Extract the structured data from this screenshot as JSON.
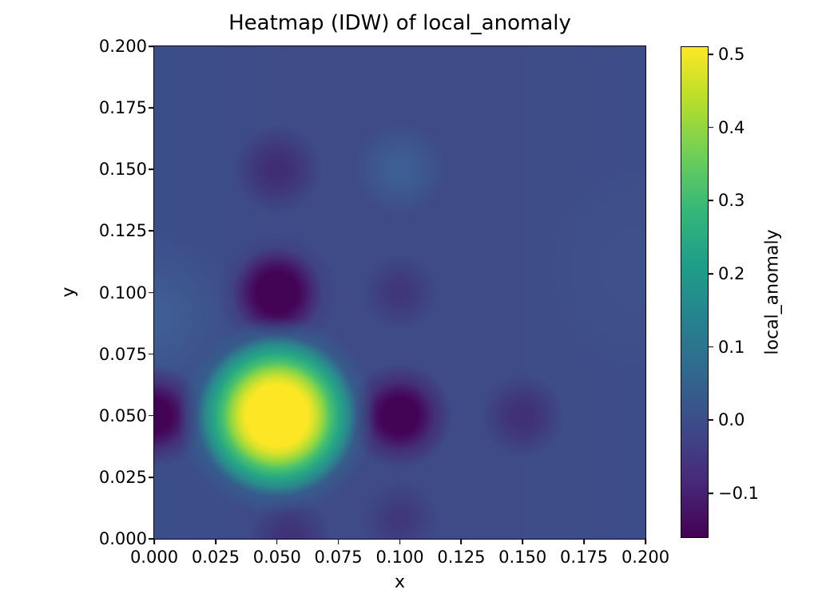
{
  "chart_data": {
    "type": "heatmap",
    "title": "Heatmap (IDW) of local_anomaly",
    "xlabel": "x",
    "ylabel": "y",
    "colorbar_label": "local_anomaly",
    "xlim": [
      0.0,
      0.2
    ],
    "ylim": [
      0.0,
      0.2
    ],
    "grid": false,
    "x_ticks": [
      {
        "value": 0.0,
        "label": "0.000"
      },
      {
        "value": 0.025,
        "label": "0.025"
      },
      {
        "value": 0.05,
        "label": "0.050"
      },
      {
        "value": 0.075,
        "label": "0.075"
      },
      {
        "value": 0.1,
        "label": "0.100"
      },
      {
        "value": 0.125,
        "label": "0.125"
      },
      {
        "value": 0.15,
        "label": "0.150"
      },
      {
        "value": 0.175,
        "label": "0.175"
      },
      {
        "value": 0.2,
        "label": "0.200"
      }
    ],
    "y_ticks": [
      {
        "value": 0.0,
        "label": "0.000"
      },
      {
        "value": 0.025,
        "label": "0.025"
      },
      {
        "value": 0.05,
        "label": "0.050"
      },
      {
        "value": 0.075,
        "label": "0.075"
      },
      {
        "value": 0.1,
        "label": "0.100"
      },
      {
        "value": 0.125,
        "label": "0.125"
      },
      {
        "value": 0.15,
        "label": "0.150"
      },
      {
        "value": 0.175,
        "label": "0.175"
      },
      {
        "value": 0.2,
        "label": "0.200"
      }
    ],
    "colorbar": {
      "colormap": "viridis",
      "vmin": -0.16,
      "vmax": 0.51,
      "ticks": [
        {
          "value": 0.5,
          "label": "0.5"
        },
        {
          "value": 0.4,
          "label": "0.4"
        },
        {
          "value": 0.3,
          "label": "0.3"
        },
        {
          "value": 0.2,
          "label": "0.2"
        },
        {
          "value": 0.1,
          "label": "0.1"
        },
        {
          "value": 0.0,
          "label": "0.0"
        },
        {
          "value": -0.1,
          "label": "−0.1"
        }
      ],
      "viridis_stops": [
        "#440154",
        "#482878",
        "#3e4989",
        "#31688e",
        "#26828e",
        "#1f9e89",
        "#35b779",
        "#6ece58",
        "#b5de2b",
        "#fde725"
      ]
    },
    "background_value": 0.0,
    "base_gradient": "linear-gradient(to right, #3c4e8a 0%, #3e4b87 30%, #3e4b87 70%, #3d4d89 100%)",
    "hotspots": [
      {
        "x": 0.05,
        "y": 0.05,
        "value": 0.51,
        "gradient": "#fde725 0px, #fde725 38px, #d8e22b 47px, #95d840 57px, #4ac16d 67px, #26a784 78px, #2a8a8d 89px, rgba(49,104,142,0.6) 101px, rgba(62,76,136,0) 124px"
      },
      {
        "x": 0.05,
        "y": 0.1,
        "value": -0.16,
        "gradient": "#440456 0px, #440456 26px, #451767 36px, rgba(70,35,112,0.7) 46px, rgba(70,50,125,0.35) 57px, rgba(68,20,100,0) 75px"
      },
      {
        "x": 0.0,
        "y": 0.05,
        "value": -0.15,
        "gradient": "#440456 0px, #440456 21px, #451767 31px, rgba(70,35,112,0.7) 41px, rgba(68,20,100,0) 64px"
      },
      {
        "x": 0.1,
        "y": 0.05,
        "value": -0.14,
        "gradient": "#440456 0px, #440456 23px, #451767 33px, rgba(70,35,112,0.7) 43px, rgba(68,20,100,0) 66px"
      },
      {
        "x": 0.1,
        "y": 0.15,
        "value": 0.07,
        "gradient": "rgba(60,120,165,0.45) 0px, rgba(60,120,165,0.45) 10px, rgba(60,118,158,0.32) 27px, rgba(60,110,150,0) 57px"
      },
      {
        "x": 0.05,
        "y": 0.15,
        "value": -0.06,
        "gradient": "rgba(66,20,96,0.55) 0px, rgba(66,20,96,0.55) 10px, rgba(66,25,100,0.42) 26px, rgba(66,30,105,0) 56px"
      },
      {
        "x": 0.1,
        "y": 0.1,
        "value": -0.04,
        "gradient": "rgba(66,20,96,0.38) 0px, rgba(66,20,96,0.38) 8px, rgba(66,25,100,0.28) 22px, rgba(66,30,105,0) 48px"
      },
      {
        "x": 0.15,
        "y": 0.05,
        "value": -0.06,
        "gradient": "rgba(66,20,96,0.5) 0px, rgba(66,20,96,0.5) 10px, rgba(66,25,100,0.38) 24px, rgba(66,30,105,0) 52px"
      },
      {
        "x": 0.055,
        "y": 0.0,
        "value": -0.05,
        "gradient": "rgba(66,20,96,0.45) 0px, rgba(66,20,96,0.45) 10px, rgba(66,25,100,0.32) 26px, rgba(66,30,105,0) 54px"
      },
      {
        "x": 0.1,
        "y": 0.008,
        "value": -0.04,
        "gradient": "rgba(66,20,96,0.35) 0px, rgba(66,20,96,0.35) 8px, rgba(66,25,100,0.25) 22px, rgba(66,30,105,0) 50px"
      }
    ],
    "tints": [
      {
        "x": 0.0,
        "y": 0.09,
        "gradient": "rgba(70,130,170,0.3) 0px, rgba(70,130,170,0.3) 20px, rgba(70,130,170,0.18) 50px, rgba(70,130,170,0) 105px"
      },
      {
        "x": 0.195,
        "y": 0.11,
        "gradient": "rgba(66,100,145,0.2) 0px, rgba(66,100,145,0.2) 30px, rgba(66,100,145,0) 135px"
      }
    ]
  }
}
